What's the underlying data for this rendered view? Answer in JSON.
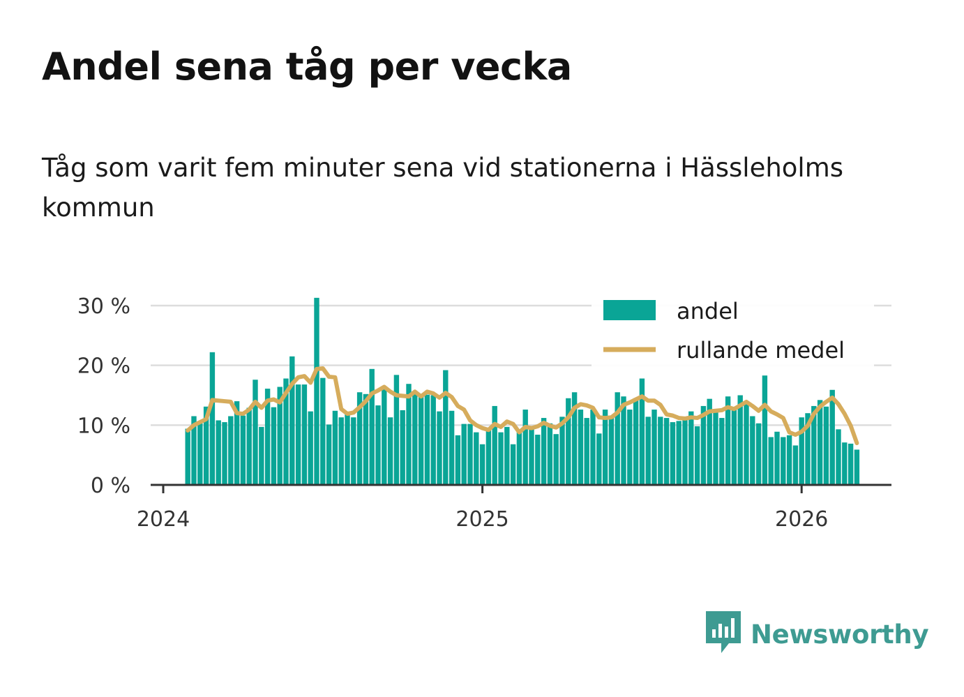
{
  "title": "Andel sena tåg per vecka",
  "subtitle": "Tåg som varit fem minuter sena vid stationerna i Hässleholms kommun",
  "brand": {
    "name": "Newsworthy",
    "icon": "newsworthy-logo-icon"
  },
  "colors": {
    "bar": "#0aa596",
    "line": "#d6ac5c",
    "grid": "#dddddd",
    "axis": "#333333",
    "brand": "#3e9b92"
  },
  "chart_data": {
    "type": "bar",
    "title": "Andel sena tåg per vecka",
    "xlabel": "",
    "ylabel": "",
    "ylim": [
      0,
      30
    ],
    "y_ticks": [
      {
        "value": 0,
        "label": "0 %"
      },
      {
        "value": 10,
        "label": "10 %"
      },
      {
        "value": 20,
        "label": "20 %"
      },
      {
        "value": 30,
        "label": "30 %"
      }
    ],
    "x_ticks": [
      {
        "week": 0,
        "label": "2024"
      },
      {
        "week": 52,
        "label": "2025"
      },
      {
        "week": 104,
        "label": "2026"
      }
    ],
    "x_domain": [
      -2,
      118
    ],
    "first_week_index": 4,
    "legend": {
      "position": "top-right",
      "items": [
        "andel",
        "rullande medel"
      ]
    },
    "series": [
      {
        "name": "andel",
        "type": "bar",
        "values": [
          9.4,
          11.5,
          10.3,
          13.1,
          22.2,
          10.8,
          10.5,
          11.5,
          14.0,
          11.6,
          12.9,
          17.6,
          9.7,
          16.1,
          13.0,
          16.4,
          17.8,
          21.5,
          16.8,
          16.8,
          12.3,
          31.3,
          17.9,
          10.1,
          12.4,
          11.3,
          11.9,
          11.3,
          15.5,
          15.2,
          19.4,
          13.3,
          16.3,
          11.3,
          18.4,
          12.5,
          16.9,
          15.2,
          14.8,
          15.1,
          15.0,
          12.3,
          19.2,
          12.4,
          8.3,
          10.2,
          10.2,
          8.8,
          6.8,
          9.2,
          13.2,
          8.8,
          9.7,
          6.8,
          9.3,
          12.6,
          9.6,
          8.4,
          11.2,
          10.3,
          8.5,
          11.4,
          14.5,
          15.5,
          12.6,
          11.2,
          12.6,
          8.6,
          12.6,
          11.4,
          15.5,
          14.8,
          12.6,
          14.5,
          17.8,
          11.4,
          12.6,
          11.4,
          11.2,
          10.5,
          10.7,
          11.2,
          12.3,
          9.8,
          13.2,
          14.4,
          12.2,
          11.2,
          14.8,
          13.0,
          15.0,
          13.5,
          11.5,
          10.3,
          18.3,
          8.0,
          8.9,
          8.0,
          8.3,
          6.6,
          11.3,
          12.0,
          13.2,
          14.2,
          13.1,
          15.9,
          9.3,
          7.1,
          6.9,
          5.9
        ]
      },
      {
        "name": "rullande medel",
        "type": "line",
        "values": [
          9.1,
          10.0,
          10.5,
          11.0,
          14.2,
          14.1,
          14.0,
          13.9,
          12.0,
          11.9,
          12.6,
          13.9,
          12.9,
          14.1,
          14.3,
          13.8,
          15.4,
          16.9,
          18.0,
          18.2,
          17.1,
          19.4,
          19.5,
          18.1,
          18.0,
          12.7,
          11.9,
          12.1,
          13.0,
          14.0,
          15.3,
          15.8,
          16.4,
          15.6,
          15.0,
          14.9,
          14.8,
          15.6,
          14.8,
          15.6,
          15.3,
          14.6,
          15.4,
          14.7,
          13.2,
          12.6,
          10.8,
          10.0,
          9.5,
          9.2,
          10.2,
          9.7,
          10.6,
          10.2,
          8.8,
          9.7,
          9.5,
          9.8,
          10.4,
          9.9,
          9.6,
          10.3,
          11.3,
          12.9,
          13.5,
          13.3,
          12.9,
          11.3,
          11.2,
          11.3,
          12.1,
          13.4,
          13.8,
          14.3,
          14.8,
          14.1,
          14.1,
          13.4,
          11.8,
          11.6,
          11.2,
          11.1,
          11.3,
          11.2,
          11.7,
          12.3,
          12.4,
          12.5,
          13.0,
          12.7,
          13.3,
          13.9,
          13.2,
          12.4,
          13.4,
          12.3,
          11.8,
          11.2,
          8.8,
          8.4,
          8.9,
          9.9,
          11.9,
          13.1,
          13.9,
          14.6,
          13.5,
          11.9,
          9.9,
          7.0
        ]
      }
    ]
  }
}
